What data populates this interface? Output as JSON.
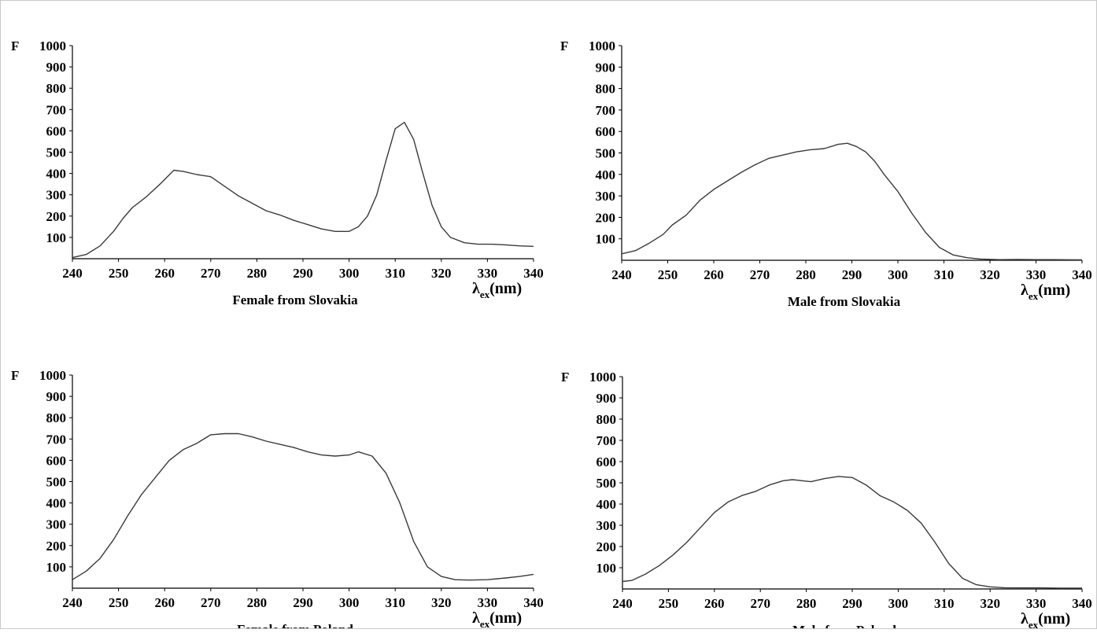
{
  "chart_data": [
    {
      "type": "line",
      "title": "Female from Slovakia",
      "ylabel": "F",
      "xlabel": "λ",
      "xlabel_sub": "ex",
      "xunit": "(nm)",
      "xlim": [
        240,
        340
      ],
      "ylim": [
        0,
        1000
      ],
      "xticks": [
        240,
        250,
        260,
        270,
        280,
        290,
        300,
        310,
        320,
        330,
        340
      ],
      "yticks": [
        100,
        200,
        300,
        400,
        500,
        600,
        700,
        800,
        900,
        1000
      ],
      "grid": false,
      "series": [
        {
          "x": [
            240,
            243,
            246,
            249,
            251,
            253,
            256,
            259,
            262,
            264,
            267,
            270,
            273,
            276,
            279,
            282,
            285,
            288,
            291,
            294,
            297,
            300,
            302,
            304,
            306,
            308,
            310,
            312,
            314,
            316,
            318,
            320,
            322,
            325,
            328,
            331,
            334,
            337,
            340
          ],
          "y": [
            5,
            20,
            60,
            130,
            190,
            240,
            290,
            350,
            415,
            410,
            395,
            385,
            340,
            295,
            260,
            225,
            205,
            180,
            160,
            140,
            128,
            128,
            150,
            200,
            300,
            460,
            610,
            640,
            560,
            400,
            250,
            150,
            100,
            75,
            68,
            68,
            65,
            60,
            58
          ]
        }
      ]
    },
    {
      "type": "line",
      "title": "Male from Slovakia",
      "ylabel": "F",
      "xlabel": "λ",
      "xlabel_sub": "ex",
      "xunit": "(nm)",
      "xlim": [
        240,
        340
      ],
      "ylim": [
        0,
        1000
      ],
      "xticks": [
        240,
        250,
        260,
        270,
        280,
        290,
        300,
        310,
        320,
        330,
        340
      ],
      "yticks": [
        100,
        200,
        300,
        400,
        500,
        600,
        700,
        800,
        900,
        1000
      ],
      "grid": false,
      "series": [
        {
          "x": [
            240,
            243,
            246,
            249,
            251,
            254,
            257,
            260,
            263,
            266,
            269,
            272,
            275,
            278,
            281,
            284,
            287,
            289,
            291,
            293,
            295,
            297,
            300,
            303,
            306,
            309,
            312,
            315,
            318,
            322,
            326,
            330,
            334,
            340
          ],
          "y": [
            30,
            45,
            80,
            120,
            165,
            210,
            280,
            330,
            370,
            410,
            445,
            475,
            490,
            505,
            515,
            520,
            540,
            545,
            530,
            505,
            460,
            400,
            320,
            220,
            130,
            60,
            25,
            12,
            6,
            3,
            4,
            3,
            3,
            2
          ]
        }
      ]
    },
    {
      "type": "line",
      "title": "Female from Poland",
      "ylabel": "F",
      "xlabel": "λ",
      "xlabel_sub": "ex",
      "xunit": "(nm)",
      "xlim": [
        240,
        340
      ],
      "ylim": [
        0,
        1000
      ],
      "xticks": [
        240,
        250,
        260,
        270,
        280,
        290,
        300,
        310,
        320,
        330,
        340
      ],
      "yticks": [
        100,
        200,
        300,
        400,
        500,
        600,
        700,
        800,
        900,
        1000
      ],
      "grid": false,
      "series": [
        {
          "x": [
            240,
            243,
            246,
            249,
            252,
            255,
            258,
            261,
            264,
            267,
            270,
            273,
            276,
            279,
            282,
            285,
            288,
            291,
            294,
            297,
            300,
            302,
            305,
            308,
            311,
            314,
            317,
            320,
            323,
            326,
            330,
            334,
            337,
            340
          ],
          "y": [
            40,
            80,
            140,
            230,
            340,
            440,
            520,
            600,
            650,
            680,
            720,
            725,
            725,
            710,
            690,
            675,
            660,
            640,
            625,
            620,
            625,
            640,
            620,
            540,
            400,
            220,
            100,
            55,
            40,
            38,
            40,
            48,
            55,
            65
          ]
        }
      ]
    },
    {
      "type": "line",
      "title": "Male from Poland",
      "ylabel": "F",
      "xlabel": "λ",
      "xlabel_sub": "ex",
      "xunit": "(nm)",
      "xlim": [
        240,
        340
      ],
      "ylim": [
        0,
        1000
      ],
      "xticks": [
        240,
        250,
        260,
        270,
        280,
        290,
        300,
        310,
        320,
        330,
        340
      ],
      "yticks": [
        100,
        200,
        300,
        400,
        500,
        600,
        700,
        800,
        900,
        1000
      ],
      "grid": false,
      "series": [
        {
          "x": [
            240,
            242,
            245,
            248,
            251,
            254,
            257,
            260,
            263,
            266,
            269,
            272,
            275,
            277,
            279,
            281,
            284,
            287,
            290,
            293,
            296,
            299,
            302,
            305,
            308,
            311,
            314,
            317,
            320,
            323,
            327,
            331,
            335,
            340
          ],
          "y": [
            35,
            40,
            70,
            110,
            160,
            220,
            290,
            360,
            410,
            440,
            460,
            490,
            510,
            515,
            510,
            505,
            520,
            530,
            525,
            490,
            440,
            410,
            370,
            310,
            220,
            120,
            50,
            20,
            10,
            6,
            5,
            5,
            4,
            4
          ]
        }
      ]
    }
  ]
}
